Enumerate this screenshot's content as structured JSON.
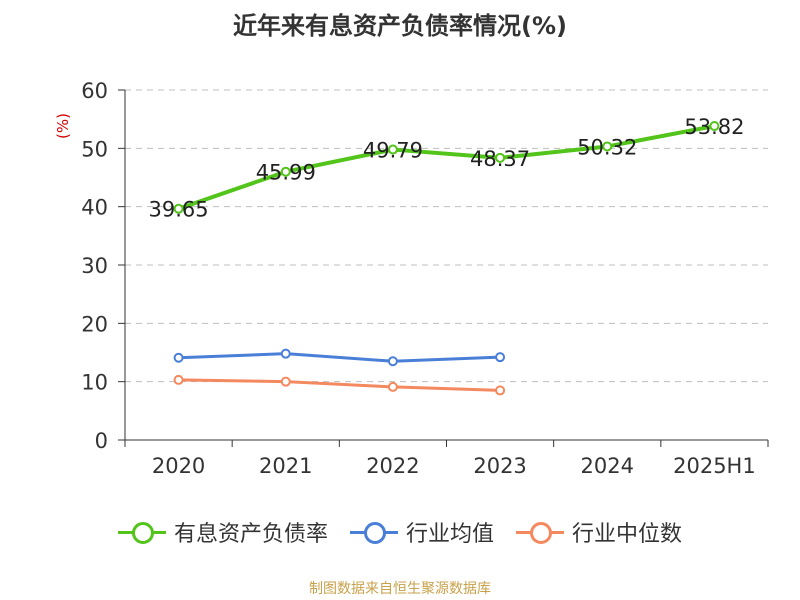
{
  "chart_data": {
    "type": "line",
    "title": "近年来有息资产负债率情况(%)",
    "ylabel": "(%)",
    "xlabel": "",
    "categories": [
      "2020",
      "2021",
      "2022",
      "2023",
      "2024",
      "2025H1"
    ],
    "ylim": [
      0,
      60
    ],
    "yticks": [
      0,
      10,
      20,
      30,
      40,
      50,
      60
    ],
    "grid": "horizontal dashed",
    "legend_position": "bottom",
    "series": [
      {
        "name": "有息资产负债率",
        "color": "#52c41a",
        "values": [
          39.65,
          45.99,
          49.79,
          48.37,
          50.32,
          53.82
        ],
        "labels": [
          "39.65",
          "45.99",
          "49.79",
          "48.37",
          "50.32",
          "53.82"
        ]
      },
      {
        "name": "行业均值",
        "color": "#4a7fd8",
        "values": [
          14.1,
          14.8,
          13.5,
          14.2,
          null,
          null
        ]
      },
      {
        "name": "行业中位数",
        "color": "#f4895f",
        "values": [
          10.3,
          10.0,
          9.1,
          8.5,
          null,
          null
        ]
      }
    ]
  },
  "source": "制图数据来自恒生聚源数据库"
}
